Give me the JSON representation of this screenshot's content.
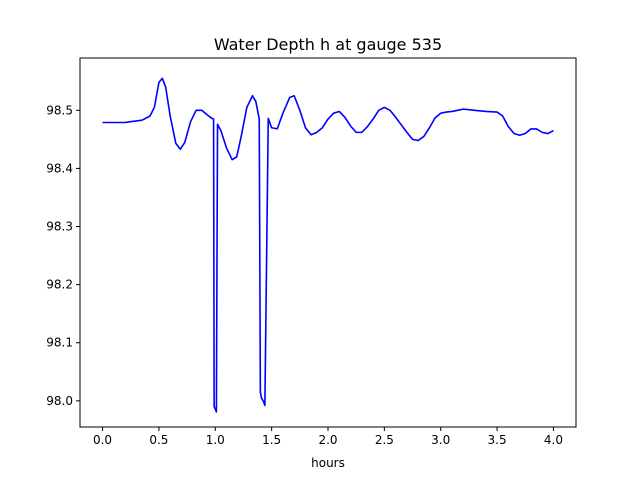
{
  "chart_data": {
    "type": "line",
    "title": "Water Depth h at gauge 535",
    "xlabel": "hours",
    "ylabel": "",
    "xlim": [
      -0.2,
      4.2
    ],
    "ylim": [
      97.955,
      98.59
    ],
    "grid": false,
    "xticks": [
      0.0,
      0.5,
      1.0,
      1.5,
      2.0,
      2.5,
      3.0,
      3.5,
      4.0
    ],
    "xtick_labels": [
      "0.0",
      "0.5",
      "1.0",
      "1.5",
      "2.0",
      "2.5",
      "3.0",
      "3.5",
      "4.0"
    ],
    "yticks": [
      98.0,
      98.1,
      98.2,
      98.3,
      98.4,
      98.5
    ],
    "ytick_labels": [
      "98.0",
      "98.1",
      "98.2",
      "98.3",
      "98.4",
      "98.5"
    ],
    "series": [
      {
        "color": "#0000ff",
        "x": [
          0.0,
          0.2,
          0.35,
          0.42,
          0.46,
          0.5,
          0.53,
          0.56,
          0.6,
          0.65,
          0.69,
          0.73,
          0.78,
          0.83,
          0.88,
          0.93,
          0.97,
          0.985,
          0.99,
          1.0,
          1.01,
          1.02,
          1.05,
          1.1,
          1.15,
          1.19,
          1.23,
          1.28,
          1.33,
          1.36,
          1.39,
          1.4,
          1.41,
          1.43,
          1.44,
          1.47,
          1.5,
          1.55,
          1.6,
          1.66,
          1.7,
          1.75,
          1.8,
          1.85,
          1.9,
          1.95,
          2.0,
          2.05,
          2.1,
          2.15,
          2.2,
          2.25,
          2.3,
          2.35,
          2.4,
          2.45,
          2.5,
          2.55,
          2.6,
          2.65,
          2.7,
          2.75,
          2.8,
          2.85,
          2.9,
          2.95,
          3.0,
          3.05,
          3.1,
          3.15,
          3.2,
          3.3,
          3.4,
          3.5,
          3.55,
          3.6,
          3.65,
          3.7,
          3.75,
          3.8,
          3.85,
          3.9,
          3.95,
          4.0
        ],
        "y": [
          98.479,
          98.479,
          98.483,
          98.49,
          98.505,
          98.548,
          98.555,
          98.54,
          98.49,
          98.443,
          98.433,
          98.445,
          98.48,
          98.5,
          98.5,
          98.492,
          98.486,
          98.485,
          97.99,
          97.986,
          97.981,
          98.476,
          98.465,
          98.435,
          98.415,
          98.42,
          98.455,
          98.505,
          98.525,
          98.515,
          98.485,
          98.015,
          98.005,
          97.998,
          97.992,
          98.486,
          98.47,
          98.468,
          98.495,
          98.522,
          98.525,
          98.5,
          98.47,
          98.458,
          98.462,
          98.47,
          98.485,
          98.495,
          98.498,
          98.488,
          98.473,
          98.462,
          98.462,
          98.472,
          98.485,
          98.5,
          98.505,
          98.5,
          98.488,
          98.475,
          98.462,
          98.45,
          98.448,
          98.455,
          98.47,
          98.487,
          98.495,
          98.497,
          98.498,
          98.5,
          98.502,
          98.5,
          98.498,
          98.497,
          98.49,
          98.472,
          98.46,
          98.457,
          98.46,
          98.468,
          98.468,
          98.462,
          98.46,
          98.465
        ]
      }
    ]
  }
}
